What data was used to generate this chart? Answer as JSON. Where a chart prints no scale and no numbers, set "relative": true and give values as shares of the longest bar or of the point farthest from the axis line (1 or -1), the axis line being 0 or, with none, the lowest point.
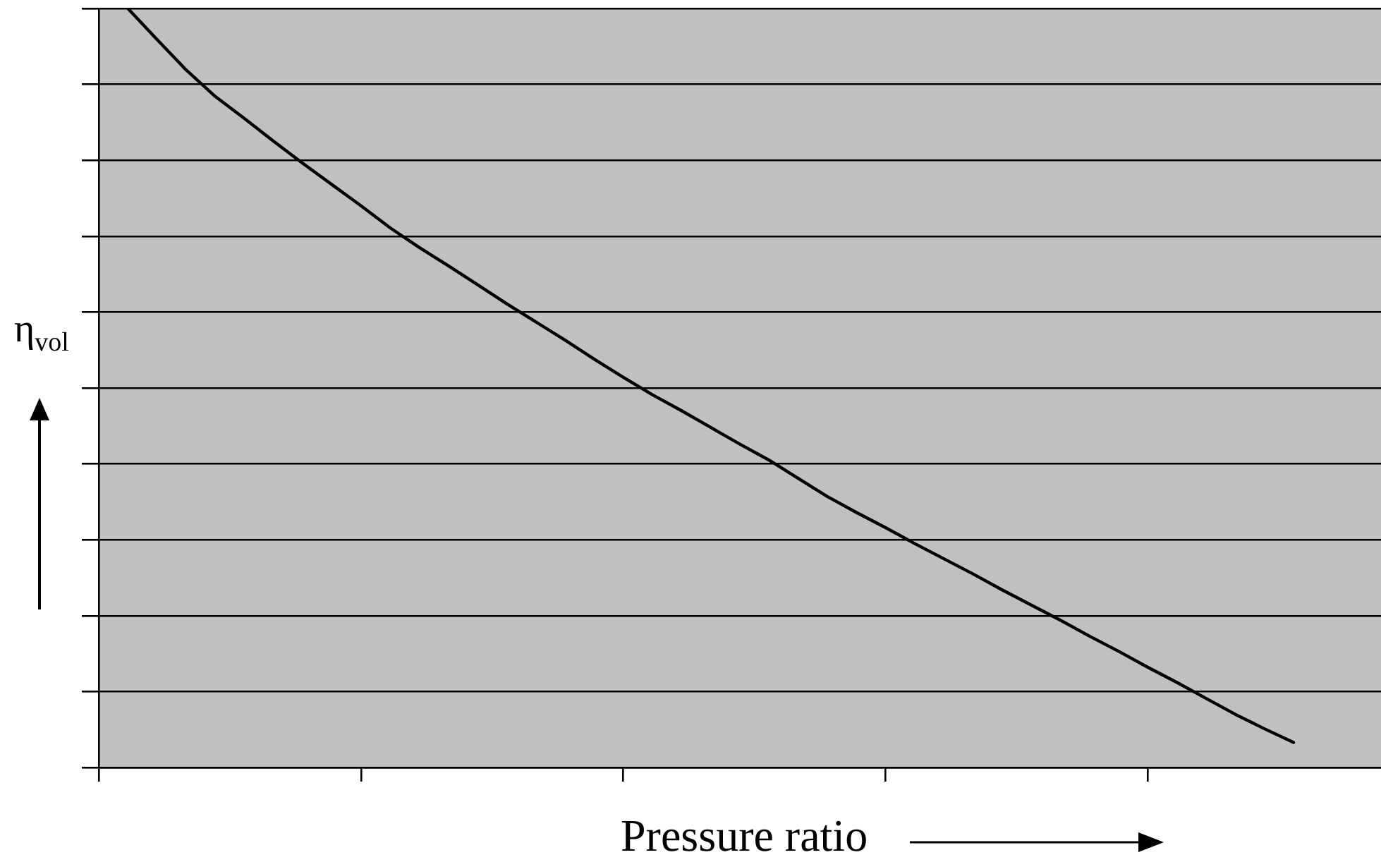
{
  "chart_data": {
    "type": "line",
    "xlabel": "Pressure ratio",
    "ylabel": "η$_{vol}$",
    "relative": true,
    "grid": "y",
    "tick_labels": false,
    "marker": "none",
    "line_style": "solid",
    "color": "#000000",
    "categories": [
      null,
      null,
      null,
      null,
      null,
      null,
      null,
      null,
      null,
      null,
      null,
      null,
      null,
      null,
      null,
      null,
      null,
      null,
      null,
      null,
      null,
      null,
      null,
      null,
      null,
      null,
      null,
      null,
      null,
      null,
      null,
      null,
      null,
      null,
      null,
      null,
      null,
      null,
      null,
      null,
      null,
      null,
      null,
      null,
      null
    ],
    "values": [
      null,
      1,
      0.959,
      0.919,
      0.884,
      0.855,
      0.825,
      0.796,
      0.768,
      0.74,
      0.711,
      0.685,
      0.661,
      0.636,
      0.611,
      0.587,
      0.563,
      0.538,
      0.514,
      0.491,
      0.47,
      0.448,
      0.426,
      0.405,
      0.381,
      0.357,
      0.336,
      0.316,
      0.295,
      0.275,
      0.255,
      0.234,
      0.214,
      0.194,
      0.173,
      0.153,
      0.132,
      0.112,
      0.091,
      0.07,
      0.051,
      0.033,
      null,
      null,
      null
    ]
  }
}
